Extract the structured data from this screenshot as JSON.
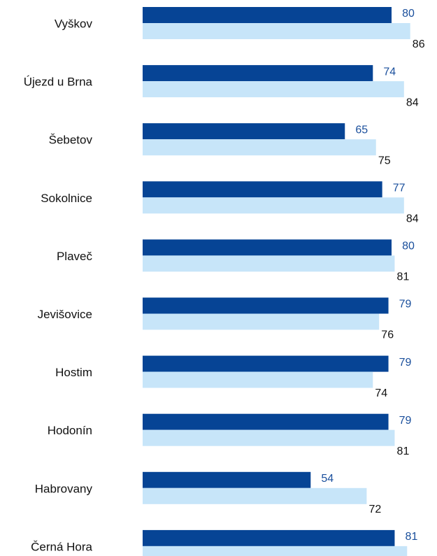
{
  "colors": {
    "series_dark": "#064495",
    "series_light": "#c7e5f9",
    "label_dark": "#1a4f9c",
    "label_light": "#111111",
    "category_text": "#111111"
  },
  "chart_data": {
    "type": "bar",
    "orientation": "horizontal",
    "categories": [
      "Vyškov",
      "Újezd u Brna",
      "Šebetov",
      "Sokolnice",
      "Plaveč",
      "Jevišovice",
      "Hostim",
      "Hodonín",
      "Habrovany",
      "Černá Hora"
    ],
    "series": [
      {
        "values": [
          80,
          74,
          65,
          77,
          80,
          79,
          79,
          79,
          54,
          81
        ],
        "color": "#064495"
      },
      {
        "values": [
          86,
          84,
          75,
          84,
          81,
          76,
          74,
          81,
          72,
          85
        ],
        "color": "#c7e5f9"
      }
    ],
    "title": "",
    "xlabel": "",
    "ylabel": "",
    "xlim": [
      0,
      100
    ],
    "grid": false,
    "legend": "none",
    "data_labels": true
  }
}
